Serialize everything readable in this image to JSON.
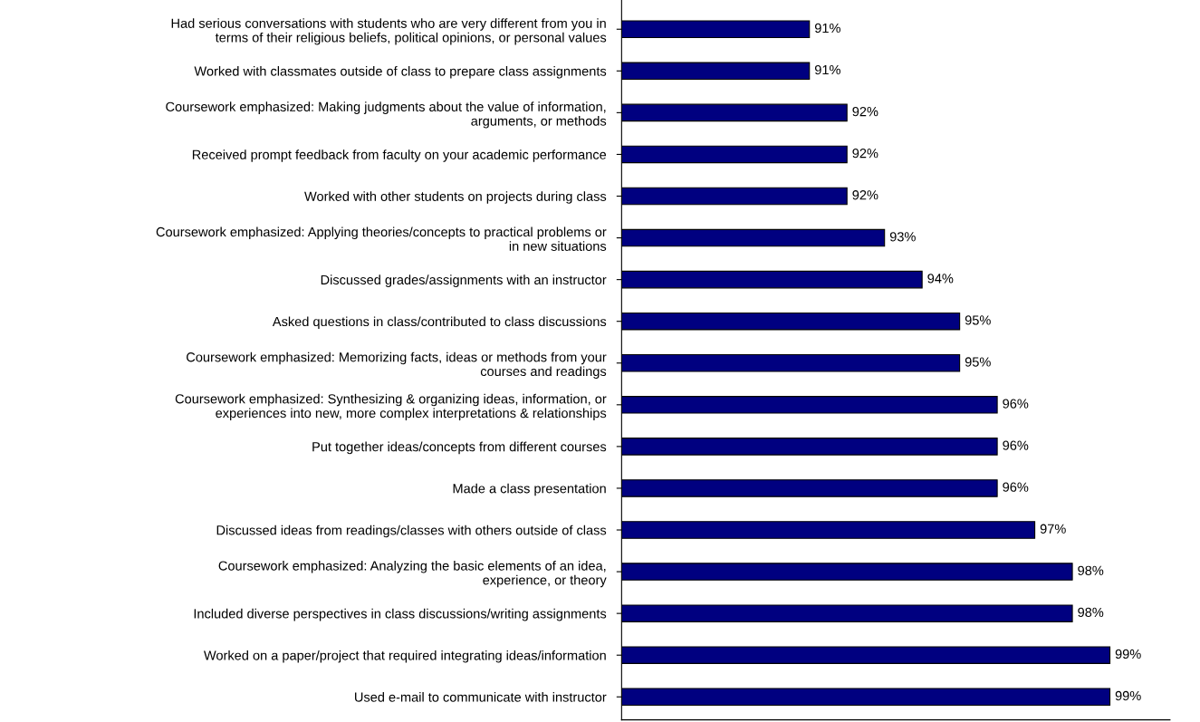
{
  "chart_data": {
    "type": "bar",
    "orientation": "horizontal",
    "categories": [
      "Had serious conversations with students who are very different from you in\nterms of their religious beliefs, political opinions, or personal values",
      "Worked with classmates outside of class to prepare class assignments",
      "Coursework emphasized: Making judgments about the value of information,\narguments, or methods",
      "Received prompt feedback from faculty on your academic performance",
      "Worked with other students on projects during class",
      "Coursework emphasized: Applying theories/concepts to practical problems or\nin new situations",
      "Discussed grades/assignments with an instructor",
      "Asked questions in class/contributed to class discussions",
      "Coursework emphasized: Memorizing facts, ideas or methods from your\ncourses and readings",
      "Coursework emphasized: Synthesizing & organizing ideas, information, or\nexperiences into new, more complex interpretations & relationships",
      "Put together ideas/concepts from different courses",
      "Made a class presentation",
      "Discussed ideas from readings/classes with others outside of class",
      "Coursework emphasized: Analyzing the basic elements of an idea,\nexperience, or theory",
      "Included diverse perspectives in class discussions/writing assignments",
      "Worked on a paper/project that required integrating ideas/information",
      "Used e-mail to communicate with instructor"
    ],
    "values": [
      91,
      91,
      92,
      92,
      92,
      93,
      94,
      95,
      95,
      96,
      96,
      96,
      97,
      98,
      98,
      99,
      99
    ],
    "value_labels": [
      "91%",
      "91%",
      "92%",
      "92%",
      "92%",
      "93%",
      "94%",
      "95%",
      "95%",
      "96%",
      "96%",
      "96%",
      "97%",
      "98%",
      "98%",
      "99%",
      "99%"
    ],
    "color": "#000080",
    "xlim": [
      86,
      100.6
    ],
    "tick_labels": "y",
    "grid": false,
    "legend": false
  }
}
